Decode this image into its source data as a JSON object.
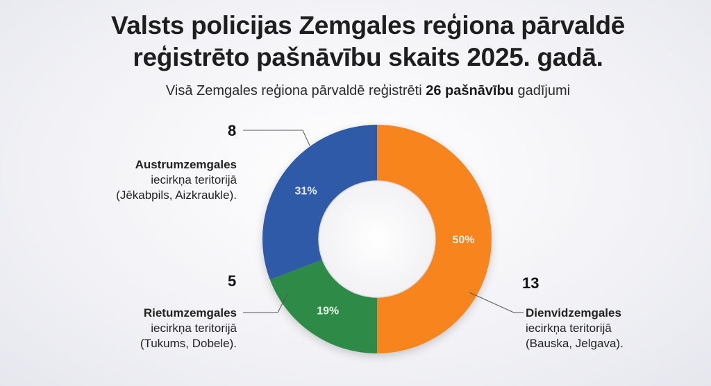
{
  "title_line1": "Valsts policijas Zemgales reģiona pārvaldē",
  "title_line2": "reģistrēto pašnāvību skaits 2025. gadā.",
  "subtitle_pre": "Visā Zemgales reģiona pārvaldē reģistrēti ",
  "subtitle_bold": "26 pašnāvību",
  "subtitle_post": " gadījumi",
  "chart_data": {
    "type": "pie",
    "variant": "donut",
    "total": 26,
    "slices": [
      {
        "name_bold": "Dienvidzemgales",
        "name_line2": "iecirkņa teritorijā",
        "name_line3": "(Bauska, Jelgava).",
        "value": 13,
        "percent_label": "50%",
        "color": "#f7841f"
      },
      {
        "name_bold": "Rietumzemgales",
        "name_line2": "iecirkņa teritorijā",
        "name_line3": "(Tukums, Dobele).",
        "value": 5,
        "percent_label": "19%",
        "color": "#2e8b47"
      },
      {
        "name_bold": "Austrumzemgales",
        "name_line2": "iecirkņa teritorijā",
        "name_line3": "(Jēkabpils, Aizkraukle).",
        "value": 8,
        "percent_label": "31%",
        "color": "#2d5aa8"
      }
    ]
  }
}
